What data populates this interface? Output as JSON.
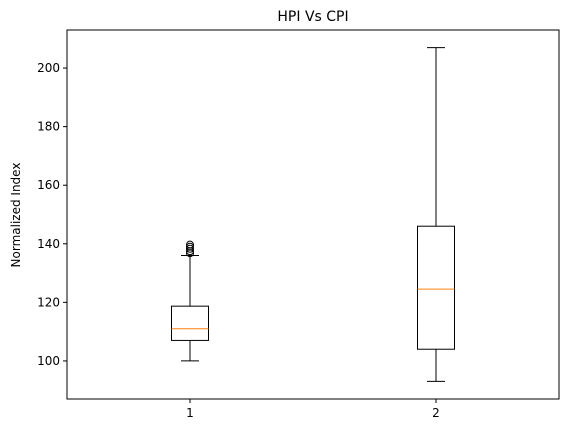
{
  "chart_data": {
    "type": "box",
    "title": "HPI Vs CPI",
    "xlabel": "",
    "ylabel": "Normalized Index",
    "categories": [
      "1",
      "2"
    ],
    "ylim": [
      87,
      213
    ],
    "yticks": [
      100,
      120,
      140,
      160,
      180,
      200
    ],
    "grid": false,
    "boxes": [
      {
        "label": "1",
        "whisker_low": 100,
        "q1": 107,
        "median": 111,
        "q3": 118.7,
        "whisker_high": 136,
        "fliers": [
          136.8,
          137.5,
          138.3,
          139,
          139.7
        ]
      },
      {
        "label": "2",
        "whisker_low": 93,
        "q1": 104,
        "median": 124.5,
        "q3": 146,
        "whisker_high": 207,
        "fliers": []
      }
    ],
    "colors": {
      "box": "#000000",
      "median": "#ff7f0e",
      "axes": "#000000"
    }
  }
}
